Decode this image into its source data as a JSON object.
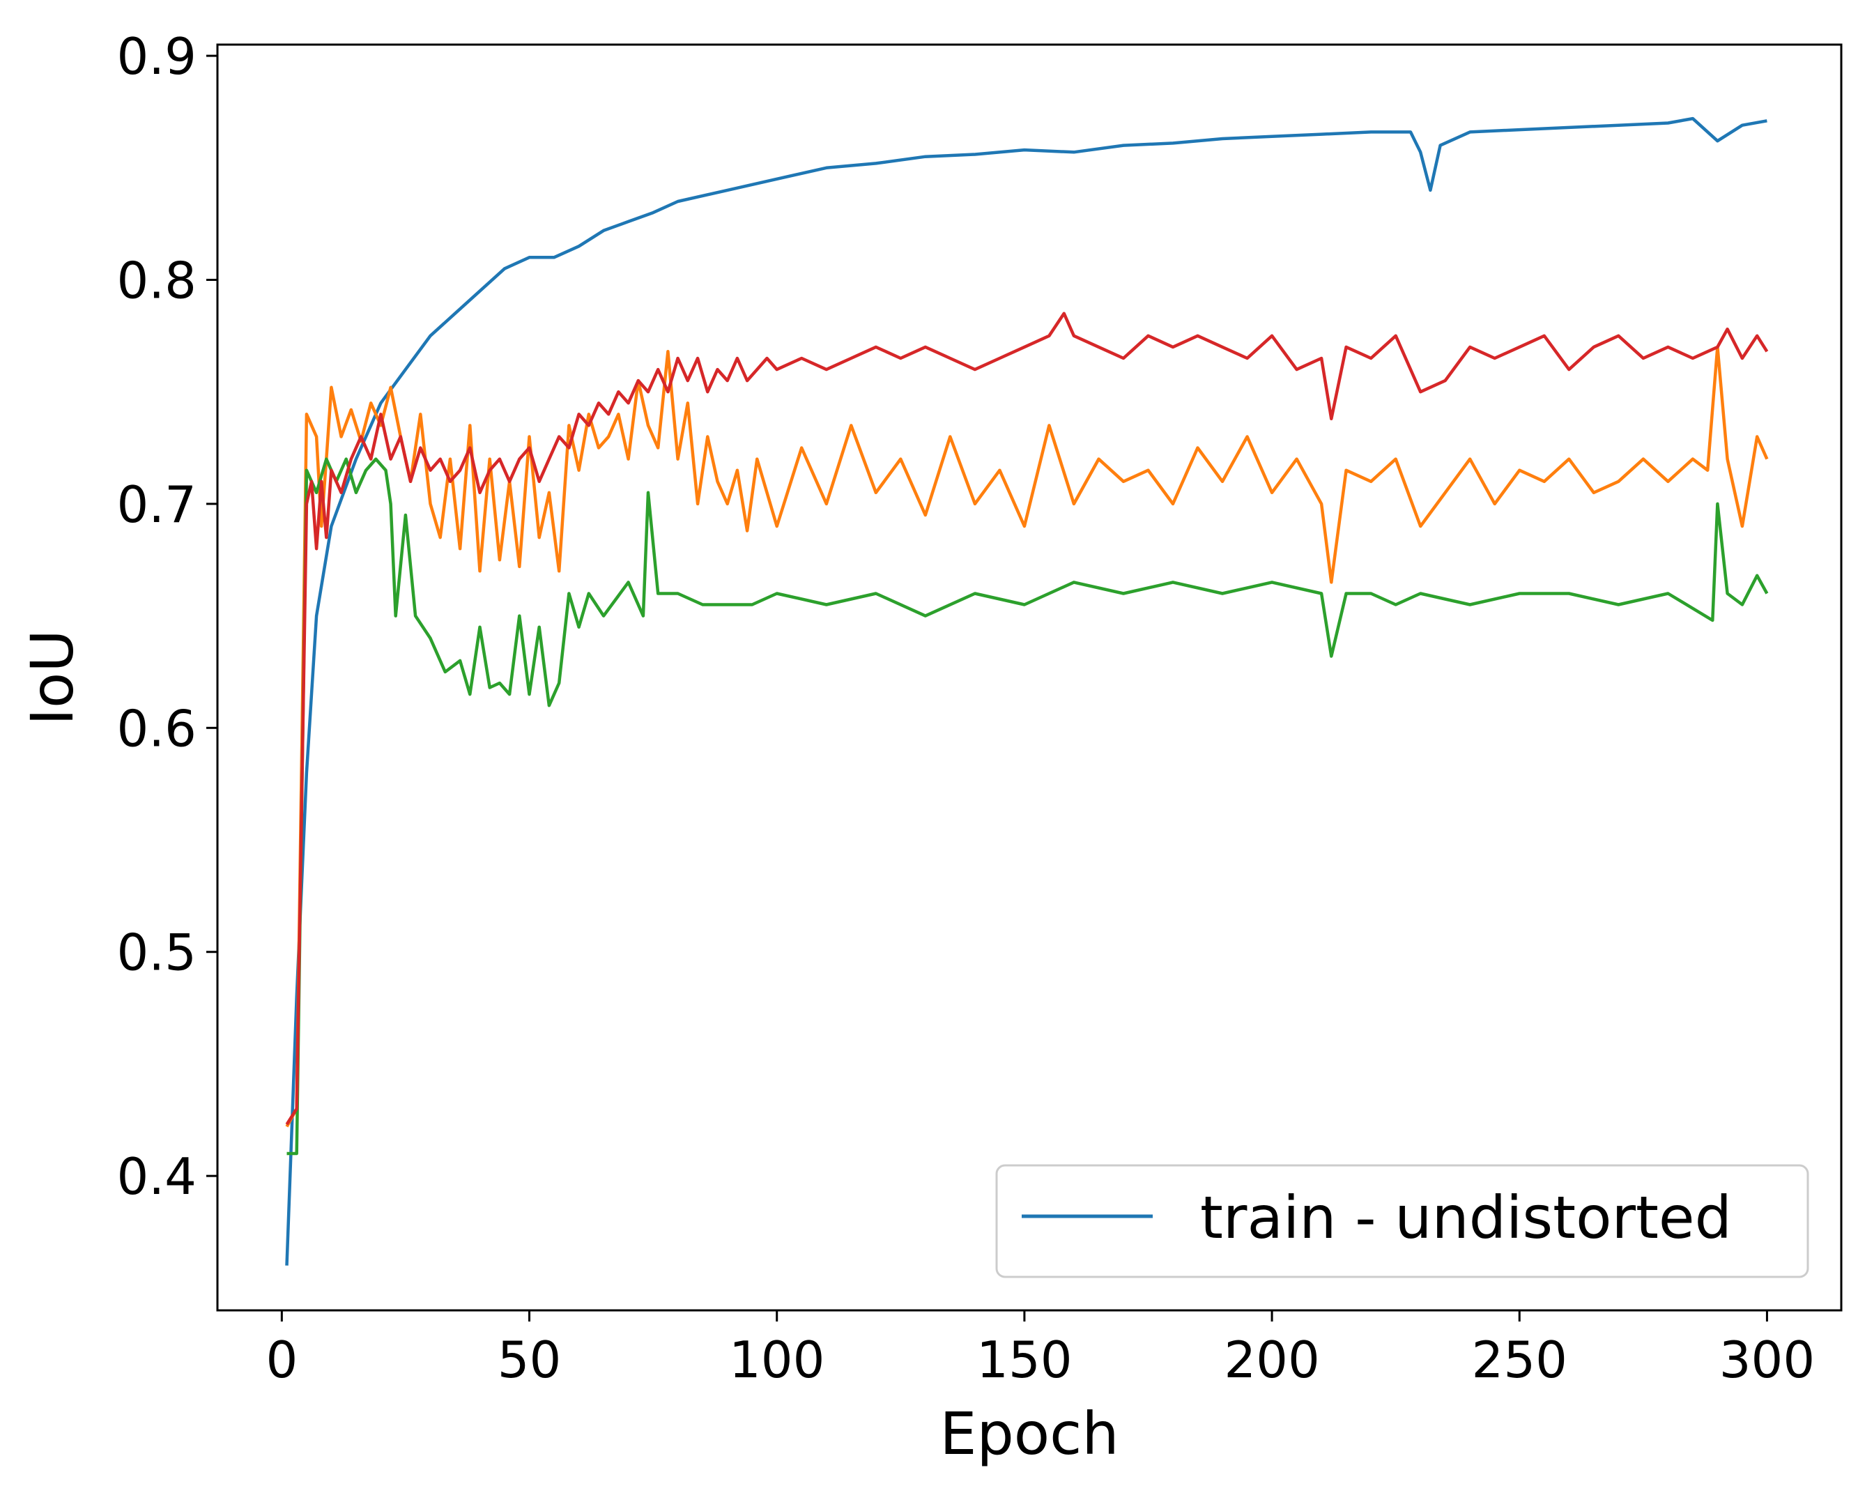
{
  "chart_data": {
    "type": "line",
    "title": "",
    "xlabel": "Epoch",
    "ylabel": "IoU",
    "xlim": [
      -13,
      315
    ],
    "ylim": [
      0.34,
      0.905
    ],
    "xticks": [
      0,
      50,
      100,
      150,
      200,
      250,
      300
    ],
    "xtick_labels": [
      "0",
      "50",
      "100",
      "150",
      "200",
      "250",
      "300"
    ],
    "yticks": [
      0.4,
      0.5,
      0.6,
      0.7,
      0.8,
      0.9
    ],
    "ytick_labels": [
      "0.4",
      "0.5",
      "0.6",
      "0.7",
      "0.8",
      "0.9"
    ],
    "grid": false,
    "legend": {
      "position": "lower-right",
      "entries": [
        "train - undistorted"
      ]
    },
    "series": [
      {
        "name": "train - undistorted",
        "color": "#1f77b4",
        "x": [
          1,
          3,
          5,
          7,
          10,
          15,
          20,
          25,
          30,
          35,
          40,
          45,
          50,
          55,
          60,
          65,
          70,
          75,
          80,
          90,
          100,
          110,
          120,
          130,
          140,
          150,
          160,
          170,
          180,
          190,
          200,
          210,
          220,
          228,
          230,
          232,
          234,
          240,
          250,
          260,
          270,
          280,
          285,
          290,
          295,
          300
        ],
        "y": [
          0.36,
          0.48,
          0.58,
          0.65,
          0.69,
          0.72,
          0.745,
          0.76,
          0.775,
          0.785,
          0.795,
          0.805,
          0.81,
          0.81,
          0.815,
          0.822,
          0.826,
          0.83,
          0.835,
          0.84,
          0.845,
          0.85,
          0.852,
          0.855,
          0.856,
          0.858,
          0.857,
          0.86,
          0.861,
          0.863,
          0.864,
          0.865,
          0.866,
          0.866,
          0.857,
          0.84,
          0.86,
          0.866,
          0.867,
          0.868,
          0.869,
          0.87,
          0.872,
          0.862,
          0.869,
          0.871
        ]
      },
      {
        "name": "",
        "color": "#ff7f0e",
        "x": [
          1,
          3,
          5,
          7,
          8,
          9,
          10,
          12,
          14,
          16,
          18,
          20,
          22,
          24,
          26,
          28,
          30,
          32,
          34,
          36,
          38,
          40,
          42,
          44,
          46,
          48,
          50,
          52,
          54,
          56,
          58,
          60,
          62,
          64,
          66,
          68,
          70,
          72,
          74,
          76,
          78,
          80,
          82,
          84,
          86,
          88,
          90,
          92,
          94,
          96,
          98,
          100,
          105,
          110,
          115,
          120,
          125,
          130,
          135,
          140,
          145,
          150,
          155,
          160,
          165,
          170,
          175,
          180,
          185,
          190,
          195,
          200,
          205,
          210,
          212,
          215,
          220,
          225,
          230,
          235,
          240,
          245,
          250,
          255,
          260,
          265,
          270,
          275,
          280,
          285,
          288,
          290,
          292,
          295,
          298,
          300
        ],
        "y": [
          0.422,
          0.43,
          0.74,
          0.73,
          0.69,
          0.72,
          0.752,
          0.73,
          0.742,
          0.728,
          0.745,
          0.735,
          0.752,
          0.73,
          0.71,
          0.74,
          0.7,
          0.685,
          0.72,
          0.68,
          0.735,
          0.67,
          0.72,
          0.675,
          0.71,
          0.672,
          0.73,
          0.685,
          0.705,
          0.67,
          0.735,
          0.715,
          0.74,
          0.725,
          0.73,
          0.74,
          0.72,
          0.755,
          0.735,
          0.725,
          0.768,
          0.72,
          0.745,
          0.7,
          0.73,
          0.71,
          0.7,
          0.715,
          0.688,
          0.72,
          0.705,
          0.69,
          0.725,
          0.7,
          0.735,
          0.705,
          0.72,
          0.695,
          0.73,
          0.7,
          0.715,
          0.69,
          0.735,
          0.7,
          0.72,
          0.71,
          0.715,
          0.7,
          0.725,
          0.71,
          0.73,
          0.705,
          0.72,
          0.7,
          0.665,
          0.715,
          0.71,
          0.72,
          0.69,
          0.705,
          0.72,
          0.7,
          0.715,
          0.71,
          0.72,
          0.705,
          0.71,
          0.72,
          0.71,
          0.72,
          0.715,
          0.77,
          0.72,
          0.69,
          0.73,
          0.72
        ]
      },
      {
        "name": "",
        "color": "#2ca02c",
        "x": [
          1,
          3,
          5,
          7,
          9,
          11,
          13,
          15,
          17,
          19,
          21,
          22,
          23,
          25,
          27,
          30,
          33,
          36,
          38,
          40,
          42,
          44,
          46,
          48,
          50,
          52,
          54,
          56,
          58,
          60,
          62,
          65,
          70,
          73,
          74,
          76,
          80,
          85,
          90,
          95,
          100,
          110,
          120,
          130,
          140,
          150,
          160,
          170,
          180,
          190,
          200,
          210,
          212,
          215,
          220,
          225,
          230,
          240,
          250,
          260,
          270,
          280,
          289,
          290,
          292,
          295,
          298,
          300
        ],
        "y": [
          0.41,
          0.41,
          0.715,
          0.705,
          0.72,
          0.71,
          0.72,
          0.705,
          0.715,
          0.72,
          0.715,
          0.7,
          0.65,
          0.695,
          0.65,
          0.64,
          0.625,
          0.63,
          0.615,
          0.645,
          0.618,
          0.62,
          0.615,
          0.65,
          0.615,
          0.645,
          0.61,
          0.62,
          0.66,
          0.645,
          0.66,
          0.65,
          0.665,
          0.65,
          0.705,
          0.66,
          0.66,
          0.655,
          0.655,
          0.655,
          0.66,
          0.655,
          0.66,
          0.65,
          0.66,
          0.655,
          0.665,
          0.66,
          0.665,
          0.66,
          0.665,
          0.66,
          0.632,
          0.66,
          0.66,
          0.655,
          0.66,
          0.655,
          0.66,
          0.66,
          0.655,
          0.66,
          0.648,
          0.7,
          0.66,
          0.655,
          0.668,
          0.66
        ]
      },
      {
        "name": "",
        "color": "#d62728",
        "x": [
          1,
          3,
          5,
          6,
          7,
          8,
          9,
          10,
          12,
          14,
          16,
          18,
          20,
          22,
          24,
          26,
          28,
          30,
          32,
          34,
          36,
          38,
          40,
          42,
          44,
          46,
          48,
          50,
          52,
          54,
          56,
          58,
          60,
          62,
          64,
          66,
          68,
          70,
          72,
          74,
          76,
          78,
          80,
          82,
          84,
          86,
          88,
          90,
          92,
          94,
          96,
          98,
          100,
          105,
          110,
          115,
          120,
          125,
          130,
          135,
          140,
          145,
          150,
          155,
          158,
          160,
          165,
          170,
          175,
          180,
          185,
          190,
          195,
          200,
          205,
          210,
          212,
          215,
          220,
          225,
          230,
          235,
          240,
          245,
          250,
          255,
          260,
          265,
          270,
          275,
          280,
          285,
          290,
          292,
          295,
          298,
          300
        ],
        "y": [
          0.423,
          0.43,
          0.7,
          0.71,
          0.68,
          0.71,
          0.685,
          0.715,
          0.705,
          0.72,
          0.73,
          0.72,
          0.74,
          0.72,
          0.73,
          0.71,
          0.725,
          0.715,
          0.72,
          0.71,
          0.715,
          0.725,
          0.705,
          0.715,
          0.72,
          0.71,
          0.72,
          0.725,
          0.71,
          0.72,
          0.73,
          0.725,
          0.74,
          0.735,
          0.745,
          0.74,
          0.75,
          0.745,
          0.755,
          0.75,
          0.76,
          0.75,
          0.765,
          0.755,
          0.765,
          0.75,
          0.76,
          0.755,
          0.765,
          0.755,
          0.76,
          0.765,
          0.76,
          0.765,
          0.76,
          0.765,
          0.77,
          0.765,
          0.77,
          0.765,
          0.76,
          0.765,
          0.77,
          0.775,
          0.785,
          0.775,
          0.77,
          0.765,
          0.775,
          0.77,
          0.775,
          0.77,
          0.765,
          0.775,
          0.76,
          0.765,
          0.738,
          0.77,
          0.765,
          0.775,
          0.75,
          0.755,
          0.77,
          0.765,
          0.77,
          0.775,
          0.76,
          0.77,
          0.775,
          0.765,
          0.77,
          0.765,
          0.77,
          0.778,
          0.765,
          0.775,
          0.768
        ]
      }
    ]
  }
}
